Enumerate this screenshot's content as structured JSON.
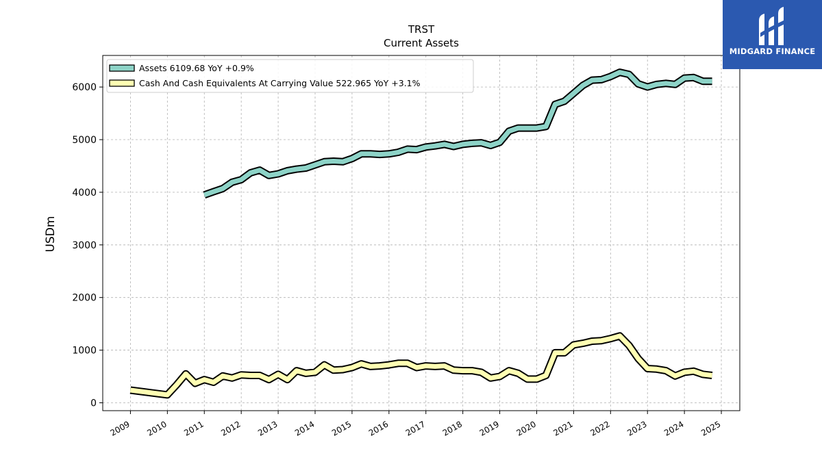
{
  "chart_data": {
    "type": "line",
    "title": "TRST",
    "subtitle": "Current  Assets",
    "ylabel": "USDm",
    "ylim": [
      -150,
      6600
    ],
    "xlim": [
      2008.25,
      2025.5
    ],
    "yticks": [
      0,
      1000,
      2000,
      3000,
      4000,
      5000,
      6000
    ],
    "xticks": [
      "2009",
      "2010",
      "2011",
      "2012",
      "2013",
      "2014",
      "2015",
      "2016",
      "2017",
      "2018",
      "2019",
      "2020",
      "2021",
      "2022",
      "2023",
      "2024",
      "2025"
    ],
    "grid": true,
    "legend_position": "top-left",
    "series": [
      {
        "name": "Assets  6109.68 YoY +0.9%",
        "color": "#8dd3c7",
        "x": [
          2011.0,
          2011.25,
          2011.5,
          2011.75,
          2012.0,
          2012.25,
          2012.5,
          2012.75,
          2013.0,
          2013.25,
          2013.5,
          2013.75,
          2014.0,
          2014.25,
          2014.5,
          2014.75,
          2015.0,
          2015.25,
          2015.5,
          2015.75,
          2016.0,
          2016.25,
          2016.5,
          2016.75,
          2017.0,
          2017.25,
          2017.5,
          2017.75,
          2018.0,
          2018.25,
          2018.5,
          2018.75,
          2019.0,
          2019.25,
          2019.5,
          2019.75,
          2020.0,
          2020.25,
          2020.5,
          2020.75,
          2021.0,
          2021.25,
          2021.5,
          2021.75,
          2022.0,
          2022.25,
          2022.5,
          2022.75,
          2023.0,
          2023.25,
          2023.5,
          2023.75,
          2024.0,
          2024.25,
          2024.5,
          2024.75
        ],
        "values": [
          3950,
          4010,
          4070,
          4190,
          4240,
          4370,
          4420,
          4320,
          4350,
          4410,
          4440,
          4460,
          4520,
          4580,
          4590,
          4580,
          4640,
          4730,
          4730,
          4720,
          4730,
          4760,
          4820,
          4810,
          4860,
          4880,
          4910,
          4870,
          4910,
          4930,
          4940,
          4890,
          4950,
          5160,
          5220,
          5220,
          5220,
          5250,
          5670,
          5730,
          5880,
          6030,
          6130,
          6140,
          6200,
          6280,
          6240,
          6060,
          6000,
          6050,
          6070,
          6050,
          6170,
          6180,
          6110,
          6110
        ]
      },
      {
        "name": "Cash And Cash Equivalents At Carrying Value  522.965 YoY +3.1%",
        "color": "#ffffb3",
        "x": [
          2009.0,
          2010.0,
          2010.25,
          2010.5,
          2010.75,
          2011.0,
          2011.25,
          2011.5,
          2011.75,
          2012.0,
          2012.25,
          2012.5,
          2012.75,
          2013.0,
          2013.25,
          2013.5,
          2013.75,
          2014.0,
          2014.25,
          2014.5,
          2014.75,
          2015.0,
          2015.25,
          2015.5,
          2015.75,
          2016.0,
          2016.25,
          2016.5,
          2016.75,
          2017.0,
          2017.25,
          2017.5,
          2017.75,
          2018.0,
          2018.25,
          2018.5,
          2018.75,
          2019.0,
          2019.25,
          2019.5,
          2019.75,
          2020.0,
          2020.25,
          2020.5,
          2020.75,
          2021.0,
          2021.25,
          2021.5,
          2021.75,
          2022.0,
          2022.25,
          2022.5,
          2022.75,
          2023.0,
          2023.25,
          2023.5,
          2023.75,
          2024.0,
          2024.25,
          2024.5,
          2024.75
        ],
        "values": [
          240,
          150,
          340,
          550,
          370,
          440,
          390,
          510,
          470,
          530,
          520,
          520,
          440,
          540,
          440,
          610,
          560,
          580,
          720,
          620,
          630,
          670,
          740,
          690,
          700,
          720,
          750,
          750,
          670,
          700,
          690,
          700,
          620,
          610,
          610,
          580,
          470,
          500,
          610,
          560,
          450,
          450,
          520,
          950,
          950,
          1100,
          1130,
          1170,
          1180,
          1220,
          1270,
          1090,
          840,
          650,
          640,
          610,
          510,
          580,
          600,
          540,
          520
        ]
      }
    ]
  },
  "logo": {
    "text": "MIDGARD FINANCE",
    "background": "#2b59b0"
  }
}
